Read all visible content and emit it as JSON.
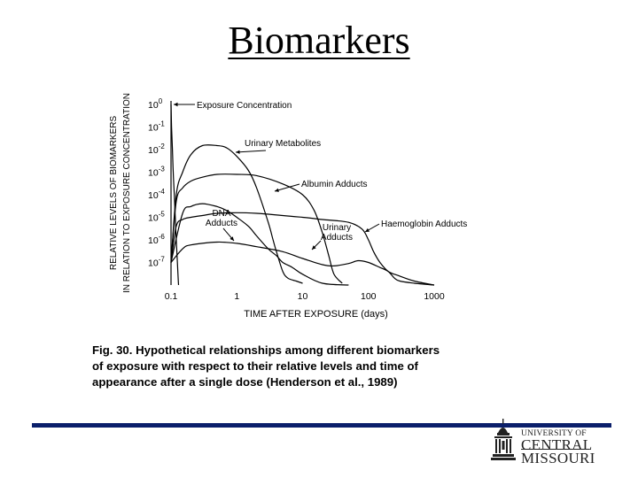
{
  "slide": {
    "title": "Biomarkers"
  },
  "caption": {
    "lines": [
      "Fig. 30.  Hypothetical relationships among different biomarkers",
      "of exposure with respect to their relative levels and time of",
      "appearance after a single dose (Henderson et al., 1989)"
    ]
  },
  "logo": {
    "line1": "UNIVERSITY OF",
    "line2": "CENTRAL",
    "line3": "MISSOURI"
  },
  "chart_data": {
    "type": "line",
    "xlabel": "TIME AFTER EXPOSURE (days)",
    "ylabel": [
      "RELATIVE LEVELS OF BIOMARKERS",
      "IN RELATION TO EXPOSURE CONCENTRATION"
    ],
    "x_scale": "log",
    "y_scale": "log",
    "xlim": [
      0.1,
      1000
    ],
    "ylim": [
      1e-08,
      1
    ],
    "x_ticks": [
      0.1,
      1,
      10,
      100,
      1000
    ],
    "x_tick_labels": [
      "0.1",
      "1",
      "10",
      "100",
      "1000"
    ],
    "y_ticks": [
      1,
      0.1,
      0.01,
      0.001,
      0.0001,
      1e-05,
      1e-06,
      1e-07
    ],
    "y_tick_labels": [
      {
        "base": "10",
        "exp": "0"
      },
      {
        "base": "10",
        "exp": "-1"
      },
      {
        "base": "10",
        "exp": "-2"
      },
      {
        "base": "10",
        "exp": "-3"
      },
      {
        "base": "10",
        "exp": "-4"
      },
      {
        "base": "10",
        "exp": "-5"
      },
      {
        "base": "10",
        "exp": "-6"
      },
      {
        "base": "10",
        "exp": "-7"
      }
    ],
    "grid": false,
    "legend": "none",
    "series": [
      {
        "name": "Exposure Concentration",
        "x": [
          0.1,
          0.102,
          0.105,
          0.108,
          0.112,
          0.116,
          0.12,
          0.125,
          0.13
        ],
        "y": [
          1,
          0.1,
          0.01,
          0.001,
          0.0001,
          1e-05,
          1e-06,
          1e-07,
          1e-08
        ]
      },
      {
        "name": "Urinary Metabolites",
        "x": [
          0.1,
          0.12,
          0.15,
          0.2,
          0.3,
          0.5,
          0.7,
          1,
          1.5,
          2,
          3,
          3.5,
          4,
          5,
          6,
          8,
          10
        ],
        "y": [
          1e-07,
          0.0001,
          0.001,
          0.006,
          0.015,
          0.015,
          0.012,
          0.005,
          0.0012,
          0.0002,
          6e-06,
          1.2e-06,
          3e-07,
          4e-08,
          2e-08,
          1.5e-08,
          1.2e-08
        ]
      },
      {
        "name": "Albumin Adducts",
        "x": [
          0.1,
          0.12,
          0.15,
          0.2,
          0.3,
          0.5,
          1,
          2,
          5,
          10,
          15,
          20,
          25,
          30,
          40
        ],
        "y": [
          1e-07,
          5e-05,
          0.0002,
          0.0004,
          0.0006,
          0.0008,
          0.0008,
          0.0007,
          0.0003,
          0.0001,
          2e-05,
          2e-06,
          2e-07,
          3e-08,
          1.2e-08
        ]
      },
      {
        "name": "Haemoglobin Adducts",
        "x": [
          0.1,
          0.12,
          0.15,
          0.2,
          0.3,
          0.5,
          1,
          2,
          5,
          10,
          20,
          50,
          80,
          100,
          120,
          150,
          200,
          300,
          500,
          1000
        ],
        "y": [
          1e-07,
          4e-06,
          8e-06,
          1e-05,
          1.2e-05,
          1.5e-05,
          1.6e-05,
          1.5e-05,
          1.2e-05,
          1e-05,
          8e-06,
          6e-06,
          3e-06,
          1e-06,
          3e-07,
          1e-07,
          4e-08,
          2.5e-08,
          1.5e-08,
          1e-08
        ]
      },
      {
        "name": "DNA Adducts",
        "x": [
          0.1,
          0.15,
          0.2,
          0.3,
          0.5,
          0.7,
          1,
          1.5,
          2,
          3,
          4,
          5,
          7,
          10,
          20,
          50
        ],
        "y": [
          1e-07,
          1.5e-05,
          3e-05,
          4e-05,
          3e-05,
          2e-05,
          1e-05,
          4e-06,
          1.5e-06,
          4e-07,
          2e-07,
          1e-07,
          6e-08,
          3e-08,
          1.2e-08,
          1e-08
        ]
      },
      {
        "name": "Urinary Adducts",
        "x": [
          0.1,
          0.15,
          0.2,
          0.5,
          1,
          2,
          5,
          10,
          20,
          30,
          50,
          70,
          100,
          150,
          200,
          250,
          300,
          500,
          1000
        ],
        "y": [
          1e-07,
          4e-07,
          6e-07,
          8e-07,
          7e-07,
          5e-07,
          3e-07,
          1.5e-07,
          8e-08,
          7e-08,
          9e-08,
          1.2e-07,
          1e-07,
          6e-08,
          4e-08,
          2e-08,
          1.5e-08,
          1.2e-08,
          1e-08
        ]
      }
    ],
    "annotations": [
      {
        "lines": [
          "Exposure Concentration"
        ]
      },
      {
        "lines": [
          "Urinary Metabolites"
        ]
      },
      {
        "lines": [
          "Albumin Adducts"
        ]
      },
      {
        "lines": [
          "Haemoglobin Adducts"
        ]
      },
      {
        "lines": [
          "DNA",
          "Adducts"
        ]
      },
      {
        "lines": [
          "Urinary",
          "Adducts"
        ]
      }
    ]
  }
}
